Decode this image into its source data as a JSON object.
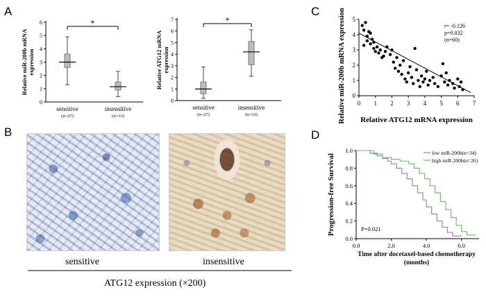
{
  "panels": {
    "A": "A",
    "B": "B",
    "C": "C",
    "D": "D"
  },
  "chart_data": [
    {
      "type": "box",
      "panel": "A-left",
      "ylabel_line1": "Relative miR-200b mRNA",
      "ylabel_line2": "expression",
      "yticks": [
        "0",
        "1",
        "2",
        "3",
        "4",
        "5",
        "6"
      ],
      "ylim": [
        0,
        6
      ],
      "categories": [
        "sensitive",
        "insensitive"
      ],
      "n_labels": [
        "(n=27)",
        "(n=33)"
      ],
      "boxes": [
        {
          "min": 1.3,
          "q1": 2.6,
          "median": 3.0,
          "q3": 3.6,
          "max": 4.9
        },
        {
          "min": 0.4,
          "q1": 0.9,
          "median": 1.15,
          "q3": 1.5,
          "max": 2.3
        }
      ],
      "significance": "*"
    },
    {
      "type": "box",
      "panel": "A-right",
      "ylabel_line1": "Relative ATG12 mRNA",
      "ylabel_line2": "expression",
      "yticks": [
        "0",
        "1",
        "2",
        "3",
        "4",
        "5",
        "6",
        "7"
      ],
      "ylim": [
        0,
        7
      ],
      "categories": [
        "sensitive",
        "insensitive"
      ],
      "n_labels": [
        "(n=27)",
        "(n=33)"
      ],
      "boxes": [
        {
          "min": 0.2,
          "q1": 0.6,
          "median": 1.0,
          "q3": 1.6,
          "max": 2.9
        },
        {
          "min": 2.1,
          "q1": 3.1,
          "median": 4.2,
          "q3": 5.1,
          "max": 6.1
        }
      ],
      "significance": "*"
    },
    {
      "type": "scatter",
      "panel": "C",
      "xlabel": "Relative ATG12 mRNA expression",
      "ylabel_line1": "Relative miR-200b mRNA expression",
      "xticks": [
        "0",
        "1",
        "2",
        "3",
        "4",
        "5",
        "6",
        "7"
      ],
      "yticks": [
        "0",
        "1",
        "2",
        "3",
        "4",
        "5"
      ],
      "xlim": [
        0,
        7
      ],
      "ylim": [
        0,
        5
      ],
      "stats": [
        "r= -0.126",
        "p=0.032",
        "(n=60)"
      ],
      "points": [
        [
          0.2,
          4.6
        ],
        [
          0.3,
          4.3
        ],
        [
          0.4,
          4.8
        ],
        [
          0.5,
          3.9
        ],
        [
          0.6,
          4.2
        ],
        [
          0.7,
          3.4
        ],
        [
          0.8,
          3.7
        ],
        [
          0.9,
          3.1
        ],
        [
          1.0,
          2.9
        ],
        [
          1.1,
          3.2
        ],
        [
          0.3,
          3.3
        ],
        [
          0.5,
          3.6
        ],
        [
          0.7,
          4.1
        ],
        [
          0.9,
          3.5
        ],
        [
          1.2,
          2.8
        ],
        [
          1.3,
          3.0
        ],
        [
          1.5,
          2.6
        ],
        [
          1.6,
          2.9
        ],
        [
          1.7,
          3.2
        ],
        [
          1.9,
          2.7
        ],
        [
          2.0,
          3.0
        ],
        [
          2.1,
          2.2
        ],
        [
          2.2,
          1.8
        ],
        [
          2.3,
          2.5
        ],
        [
          2.4,
          1.6
        ],
        [
          2.5,
          2.0
        ],
        [
          2.6,
          1.4
        ],
        [
          2.7,
          2.3
        ],
        [
          2.8,
          1.1
        ],
        [
          2.9,
          0.9
        ],
        [
          3.0,
          1.5
        ],
        [
          3.1,
          1.9
        ],
        [
          3.2,
          1.2
        ],
        [
          3.3,
          0.8
        ],
        [
          3.4,
          3.1
        ],
        [
          3.5,
          1.7
        ],
        [
          3.6,
          1.0
        ],
        [
          3.7,
          0.6
        ],
        [
          3.8,
          1.3
        ],
        [
          3.9,
          0.9
        ],
        [
          4.0,
          1.1
        ],
        [
          4.1,
          1.6
        ],
        [
          4.2,
          0.7
        ],
        [
          4.3,
          1.0
        ],
        [
          4.5,
          1.2
        ],
        [
          4.6,
          0.8
        ],
        [
          4.8,
          0.6
        ],
        [
          5.0,
          1.3
        ],
        [
          5.1,
          2.1
        ],
        [
          5.2,
          0.9
        ],
        [
          5.3,
          1.5
        ],
        [
          5.4,
          0.7
        ],
        [
          5.5,
          1.0
        ],
        [
          5.7,
          0.8
        ],
        [
          5.8,
          0.5
        ],
        [
          6.0,
          1.1
        ],
        [
          6.1,
          0.6
        ],
        [
          6.2,
          0.9
        ],
        [
          6.3,
          0.4
        ],
        [
          1.4,
          2.5
        ]
      ],
      "fit": {
        "x1": 0,
        "y1": 4.1,
        "x2": 6.8,
        "y2": 0.2
      }
    },
    {
      "type": "line",
      "panel": "D",
      "xlabel_line1": "Time after docetaxel-based chemotherapy",
      "xlabel_line2": "(months)",
      "ylabel": "Progression-free Survival",
      "xticks": [
        "0.0",
        "2.0",
        "4.0",
        "6.0"
      ],
      "yticks": [
        "0.0",
        "0.2",
        "0.4",
        "0.6",
        "0.8",
        "1.0"
      ],
      "xlim": [
        0,
        7
      ],
      "ylim": [
        0,
        1
      ],
      "pvalue": "P=0.021",
      "series": [
        {
          "name": "low miR-200b(n=34)",
          "color": "#8080c0",
          "steps": [
            [
              0,
              1.0
            ],
            [
              0.8,
              0.97
            ],
            [
              1.2,
              0.94
            ],
            [
              1.5,
              0.91
            ],
            [
              1.8,
              0.88
            ],
            [
              2.0,
              0.85
            ],
            [
              2.3,
              0.8
            ],
            [
              2.6,
              0.74
            ],
            [
              2.9,
              0.68
            ],
            [
              3.2,
              0.6
            ],
            [
              3.5,
              0.52
            ],
            [
              3.8,
              0.44
            ],
            [
              4.0,
              0.36
            ],
            [
              4.3,
              0.28
            ],
            [
              4.6,
              0.2
            ],
            [
              4.9,
              0.13
            ],
            [
              5.2,
              0.07
            ],
            [
              5.5,
              0.03
            ],
            [
              6.0,
              0.03
            ]
          ]
        },
        {
          "name": "high miR-200b(n=26)",
          "color": "#66b866",
          "steps": [
            [
              0,
              1.0
            ],
            [
              1.0,
              0.96
            ],
            [
              1.5,
              0.92
            ],
            [
              2.0,
              0.9
            ],
            [
              2.5,
              0.88
            ],
            [
              3.0,
              0.85
            ],
            [
              3.3,
              0.8
            ],
            [
              3.6,
              0.74
            ],
            [
              3.9,
              0.68
            ],
            [
              4.2,
              0.6
            ],
            [
              4.5,
              0.52
            ],
            [
              4.8,
              0.42
            ],
            [
              5.1,
              0.33
            ],
            [
              5.4,
              0.24
            ],
            [
              5.7,
              0.15
            ],
            [
              6.0,
              0.08
            ],
            [
              6.3,
              0.04
            ],
            [
              6.8,
              0.04
            ]
          ]
        }
      ]
    }
  ],
  "micrographs": {
    "left_label": "sensitive",
    "right_label": "insensitive",
    "caption": "ATG12 expression (×200)"
  }
}
